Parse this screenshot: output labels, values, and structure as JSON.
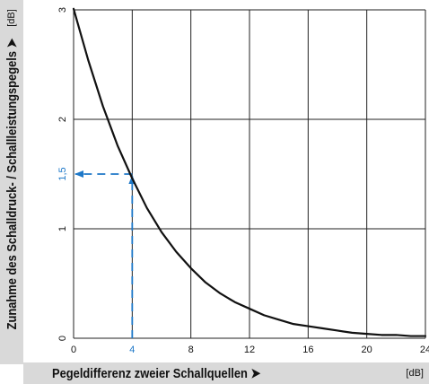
{
  "chart_data": {
    "type": "line",
    "xlabel": "Pegeldifferenz zweier Schallquellen ➤",
    "xunit": "[dB]",
    "ylabel": "Zunahme des Schalldruck- / Schallleistungspegels ➤",
    "yunit": "[dB]",
    "xlim": [
      0,
      24
    ],
    "ylim": [
      0,
      3
    ],
    "x_ticks": [
      "0",
      "4",
      "8",
      "12",
      "16",
      "20",
      "24"
    ],
    "y_ticks": [
      "0",
      "1",
      "2",
      "3"
    ],
    "grid": true,
    "series": [
      {
        "x": [
          0,
          1,
          2,
          3,
          4,
          5,
          6,
          7,
          8,
          9,
          10,
          11,
          12,
          13,
          14,
          15,
          16,
          17,
          18,
          19,
          20,
          21,
          22,
          23,
          24
        ],
        "y": [
          3.01,
          2.54,
          2.12,
          1.76,
          1.46,
          1.19,
          0.97,
          0.79,
          0.64,
          0.51,
          0.41,
          0.33,
          0.27,
          0.21,
          0.17,
          0.13,
          0.11,
          0.09,
          0.07,
          0.05,
          0.04,
          0.03,
          0.03,
          0.02,
          0.02
        ],
        "color": "#111111"
      }
    ],
    "annotations": [
      {
        "x": 4,
        "y": 1.5,
        "x_label": "4",
        "y_label": "1,5",
        "color": "#1e78c8",
        "style": "dashed-arrows"
      }
    ]
  }
}
